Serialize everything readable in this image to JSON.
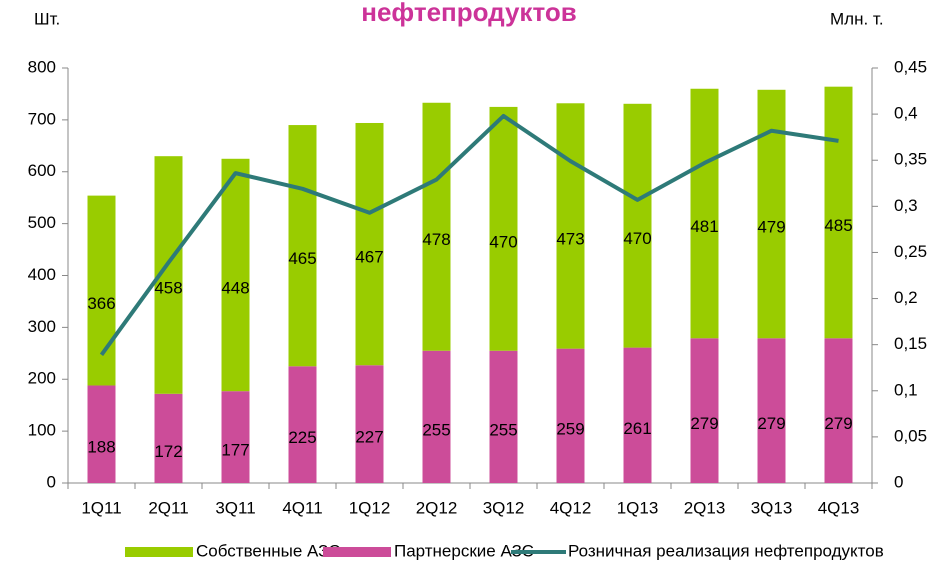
{
  "chart_data": {
    "type": "bar",
    "title": "нефтепродуктов",
    "y_label": "Шт.",
    "y2_label": "Млн. т.",
    "categories": [
      "1Q11",
      "2Q11",
      "3Q11",
      "4Q11",
      "1Q12",
      "2Q12",
      "3Q12",
      "4Q12",
      "1Q13",
      "2Q13",
      "3Q13",
      "4Q13"
    ],
    "series": [
      {
        "name": "Собственные АЗС",
        "color": "#99cc00",
        "stack": "bottom-second",
        "values": [
          366,
          458,
          448,
          465,
          467,
          478,
          470,
          473,
          470,
          481,
          479,
          485
        ]
      },
      {
        "name": "Партнерские АЗС",
        "color": "#cc4c99",
        "stack": "bottom-first",
        "values": [
          188,
          172,
          177,
          225,
          227,
          255,
          255,
          259,
          261,
          279,
          279,
          279
        ]
      },
      {
        "name": "Розничная реализация нефтепродуктов",
        "color": "#2e7a78",
        "axis": "y2",
        "type": "line",
        "values": [
          0.139,
          0.239,
          0.336,
          0.319,
          0.293,
          0.329,
          0.398,
          0.349,
          0.307,
          0.347,
          0.382,
          0.371
        ]
      }
    ],
    "ylim": [
      0,
      800
    ],
    "yticks": [
      0,
      100,
      200,
      300,
      400,
      500,
      600,
      700,
      800
    ],
    "y2lim": [
      0,
      0.45
    ],
    "y2ticks": [
      0,
      {
        "value": 0.05,
        "label": "0,05"
      },
      {
        "value": 0.1,
        "label": "0,1"
      },
      {
        "value": 0.15,
        "label": "0,15"
      },
      {
        "value": 0.2,
        "label": "0,2"
      },
      {
        "value": 0.25,
        "label": "0,25"
      },
      {
        "value": 0.3,
        "label": "0,3"
      },
      {
        "value": 0.35,
        "label": "0,35"
      },
      {
        "value": 0.4,
        "label": "0,4"
      },
      {
        "value": 0.45,
        "label": "0,45"
      }
    ],
    "legend": "bottom"
  }
}
